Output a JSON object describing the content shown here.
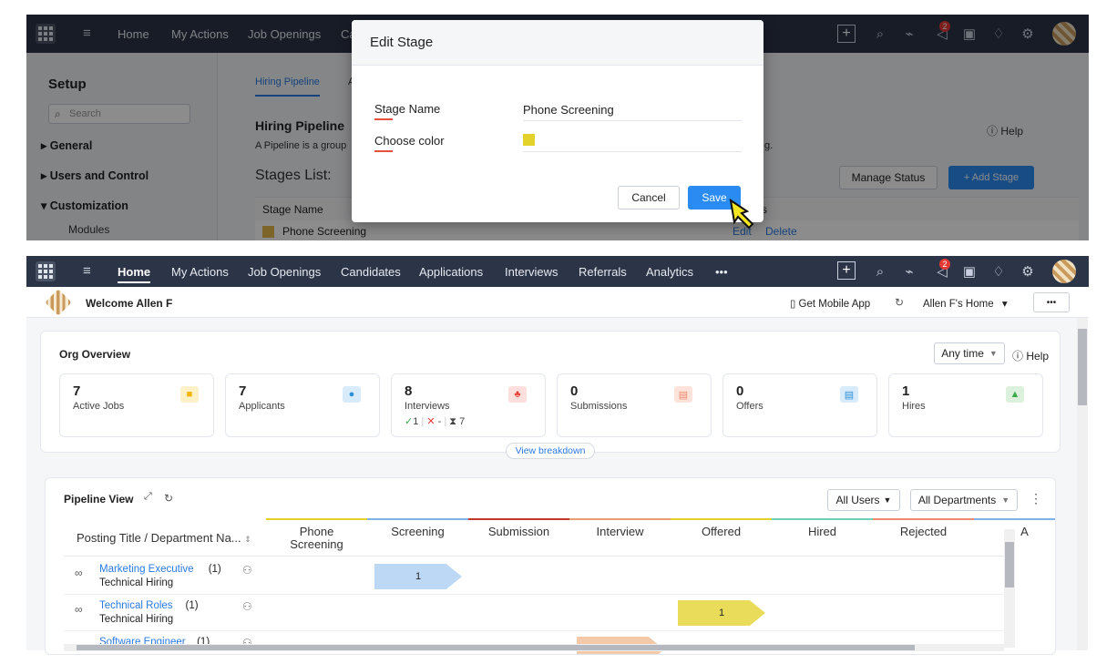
{
  "top_panel": {
    "nav": [
      "Home",
      "My Actions",
      "Job Openings",
      "Ca"
    ],
    "setup_title": "Setup",
    "search_placeholder": "Search",
    "sidebar": [
      "General",
      "Users and Control",
      "Customization",
      "Modules"
    ],
    "tab_hiring_pipeline": "Hiring Pipeline",
    "tab_second": "A",
    "section_title": "Hiring Pipeline",
    "section_desc": "A Pipeline is a group",
    "section_desc_tail": "g.",
    "help": "Help",
    "stages_list": "Stages List:",
    "manage_status": "Manage Status",
    "add_stage": "+ Add Stage",
    "col_stage_name": "Stage Name",
    "col_status_tail": "s",
    "row_stage": "Phone Screening",
    "row_edit": "Edit",
    "row_delete": "Delete",
    "notif_count": "2"
  },
  "modal": {
    "title": "Edit Stage",
    "stage_name_label": "Stage Name",
    "stage_name_value": "Phone Screening",
    "choose_color_label": "Choose color",
    "color": "#e3d22a",
    "cancel": "Cancel",
    "save": "Save"
  },
  "main": {
    "nav": [
      "Home",
      "My Actions",
      "Job Openings",
      "Candidates",
      "Applications",
      "Interviews",
      "Referrals",
      "Analytics",
      "•••"
    ],
    "notif_count": "2",
    "welcome": "Welcome Allen F",
    "get_mobile_app": "Get Mobile App",
    "home_select": "Allen F's Home",
    "more": "•••",
    "org_overview": "Org Overview",
    "any_time": "Any time",
    "help": "Help",
    "stats": [
      {
        "value": "7",
        "label": "Active Jobs",
        "color": "#f5b400",
        "icon": "briefcase-icon"
      },
      {
        "value": "7",
        "label": "Applicants",
        "color": "#2d8fd5",
        "icon": "person-icon"
      },
      {
        "value": "8",
        "label": "Interviews",
        "color": "#e8483a",
        "icon": "people-icon",
        "extra_done": "1",
        "extra_cancel": "-",
        "extra_pending": "7"
      },
      {
        "value": "0",
        "label": "Submissions",
        "color": "#f08a6c",
        "icon": "document-icon"
      },
      {
        "value": "0",
        "label": "Offers",
        "color": "#2d8fd5",
        "icon": "offer-doc-icon"
      },
      {
        "value": "1",
        "label": "Hires",
        "color": "#3aa94a",
        "icon": "thumbs-up-icon"
      }
    ],
    "view_breakdown": "View breakdown",
    "pipeline_title": "Pipeline View",
    "all_users": "All Users",
    "all_departments": "All Departments",
    "table_header_first": "Posting Title / Department Na...",
    "stages": [
      {
        "label": "Phone Screening",
        "color": "#e3d22a"
      },
      {
        "label": "Screening",
        "color": "#7fb2e8"
      },
      {
        "label": "Submission",
        "color": "#c0392b"
      },
      {
        "label": "Interview",
        "color": "#e8a070"
      },
      {
        "label": "Offered",
        "color": "#e3d22a"
      },
      {
        "label": "Hired",
        "color": "#6fd0b8"
      },
      {
        "label": "Rejected",
        "color": "#f08a6c"
      },
      {
        "label": "A",
        "color": "#7fb2e8"
      }
    ],
    "rows": [
      {
        "title": "Marketing Executive",
        "count": "(1)",
        "dept": "Technical Hiring",
        "stage_index": 1,
        "value": "1",
        "color": "#bcd8f5"
      },
      {
        "title": "Technical Roles",
        "count": "(1)",
        "dept": "Technical Hiring",
        "stage_index": 4,
        "value": "1",
        "color": "#e8dc5a"
      },
      {
        "title": "Software Engineer",
        "count": "(1)",
        "dept": "",
        "stage_index": 3,
        "value": "",
        "color": "#f3c9a8"
      }
    ]
  }
}
